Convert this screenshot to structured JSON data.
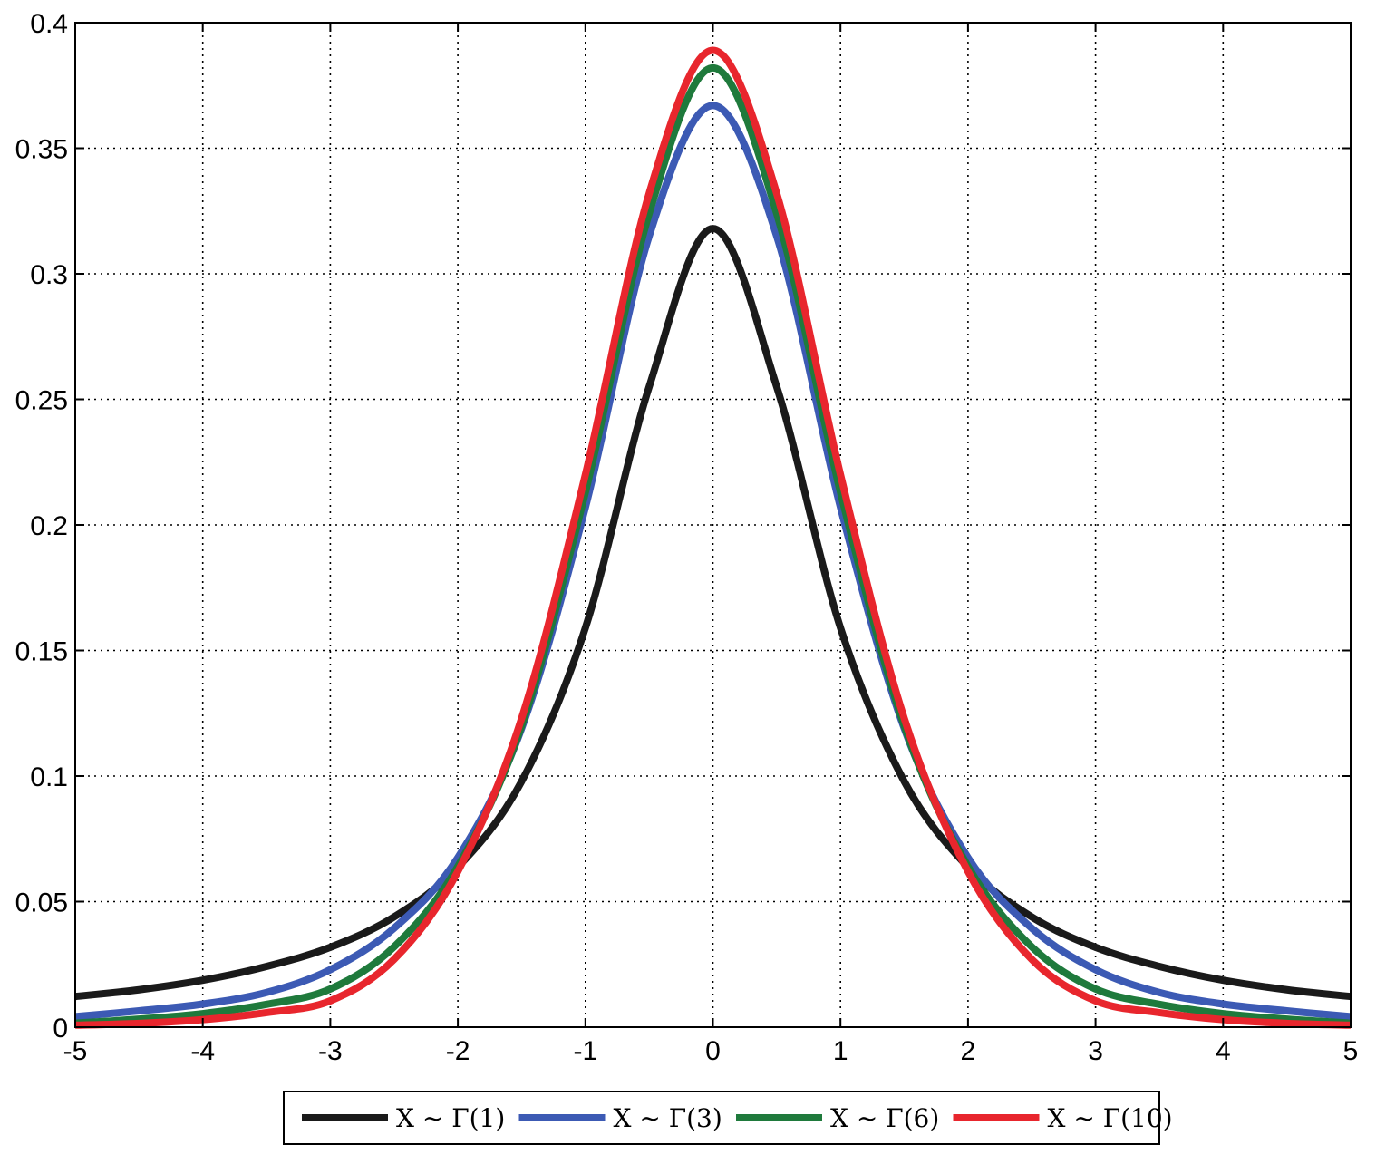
{
  "chart_data": {
    "type": "line",
    "title": "",
    "xlabel": "",
    "ylabel": "",
    "xlim": [
      -5,
      5
    ],
    "ylim": [
      0,
      0.4
    ],
    "xticks": [
      "-5",
      "-4",
      "-3",
      "-2",
      "-1",
      "0",
      "1",
      "2",
      "3",
      "4",
      "5"
    ],
    "yticks": [
      "0",
      "0.05",
      "0.1",
      "0.15",
      "0.2",
      "0.25",
      "0.3",
      "0.35",
      "0.4"
    ],
    "grid": true,
    "legend_position": "bottom-outside",
    "x": [
      -5,
      -4.5,
      -4,
      -3.5,
      -3,
      -2.5,
      -2,
      -1.5,
      -1,
      -0.5,
      0,
      0.5,
      1,
      1.5,
      2,
      2.5,
      3,
      3.5,
      4,
      4.5,
      5
    ],
    "series": [
      {
        "name": "X ~ Γ(1)",
        "color": "#1a1a1a",
        "values": [
          0.0122,
          0.0149,
          0.0187,
          0.0242,
          0.0318,
          0.0439,
          0.0637,
          0.0979,
          0.159,
          0.255,
          0.318,
          0.255,
          0.159,
          0.0979,
          0.0637,
          0.0439,
          0.0318,
          0.0242,
          0.0187,
          0.0149,
          0.0122
        ]
      },
      {
        "name": "X ~ Γ(3)",
        "color": "#3c5ab4",
        "values": [
          0.0042,
          0.0065,
          0.0092,
          0.0138,
          0.0229,
          0.0394,
          0.0675,
          0.119,
          0.207,
          0.315,
          0.367,
          0.315,
          0.207,
          0.119,
          0.0675,
          0.0394,
          0.0229,
          0.0138,
          0.0092,
          0.0065,
          0.0042
        ]
      },
      {
        "name": "X ~ Γ(6)",
        "color": "#1f7a3c",
        "values": [
          0.0016,
          0.0032,
          0.0054,
          0.0091,
          0.0152,
          0.032,
          0.064,
          0.12,
          0.213,
          0.324,
          0.382,
          0.324,
          0.213,
          0.12,
          0.064,
          0.032,
          0.0152,
          0.0091,
          0.0054,
          0.0032,
          0.0016
        ]
      },
      {
        "name": "X ~ Γ(10)",
        "color": "#e8262d",
        "values": [
          0.0008,
          0.0015,
          0.003,
          0.0058,
          0.0105,
          0.027,
          0.062,
          0.123,
          0.22,
          0.332,
          0.389,
          0.332,
          0.22,
          0.123,
          0.062,
          0.027,
          0.0105,
          0.0058,
          0.003,
          0.0015,
          0.0008
        ]
      }
    ]
  }
}
